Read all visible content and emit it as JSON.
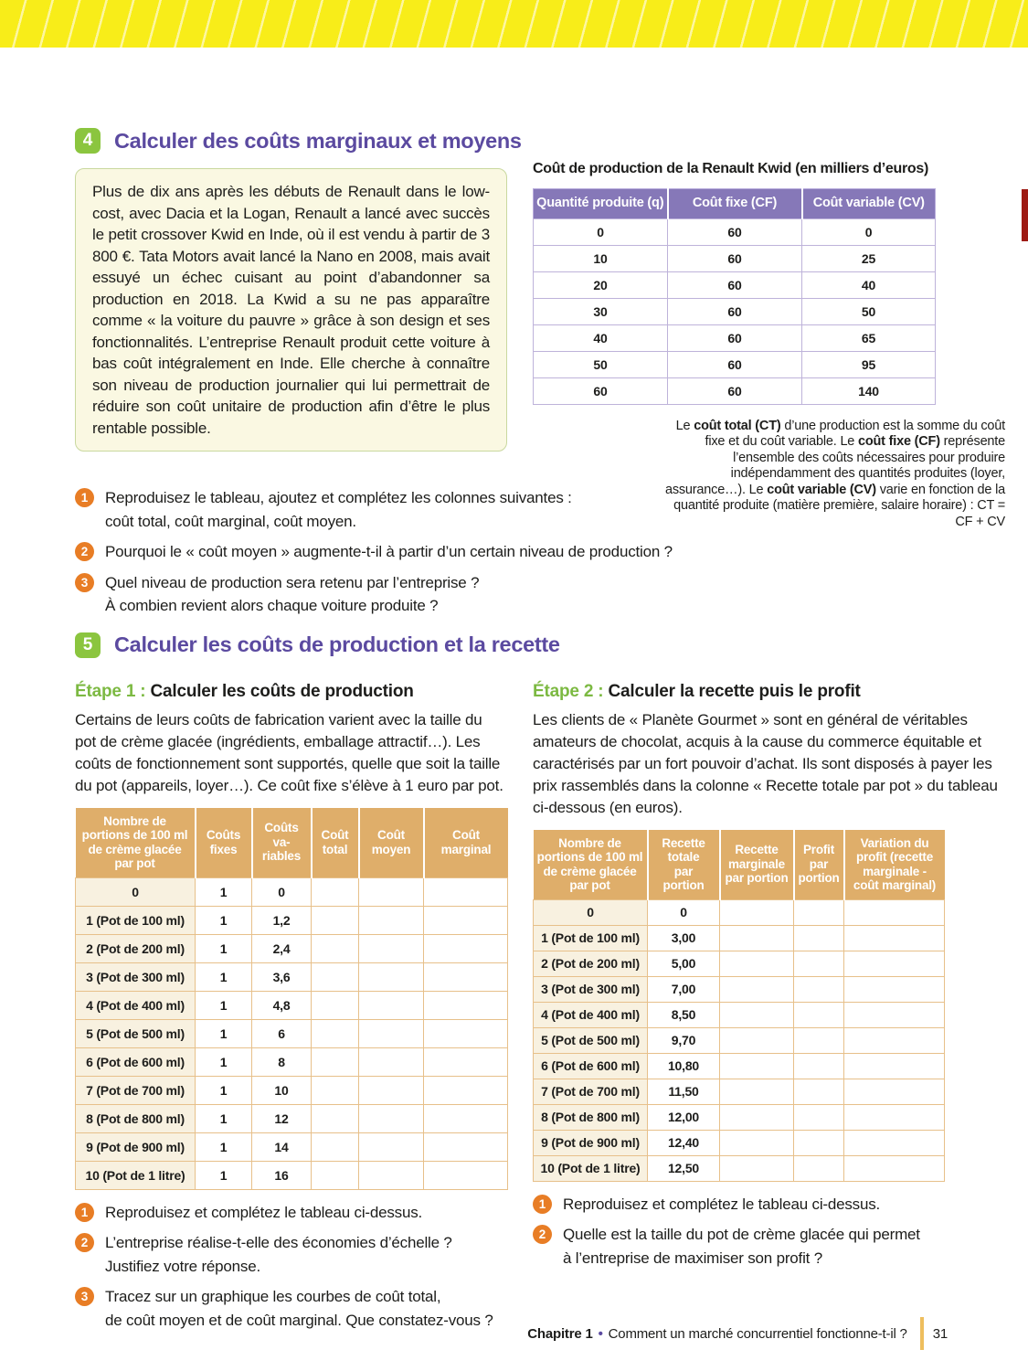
{
  "colors": {
    "band_yellow": "#f8ed19",
    "title_purple": "#5b4aa0",
    "section_badge_green": "#8bc53f",
    "kwid_header_purple": "#8678b8",
    "question_badge_orange": "#e87d25",
    "tan_header": "#dfae6a",
    "edge_tab_red": "#9e1b14",
    "footer_bar_gold": "#eebe5e"
  },
  "section4": {
    "number": "4",
    "title": "Calculer des coûts marginaux et moyens",
    "intro": "Plus de dix ans après les débuts de Renault dans le low-cost, avec Dacia et la Logan, Renault a lancé avec succès le petit crossover Kwid en Inde, où il est vendu à partir de 3 800 €. Tata Motors avait lancé la Nano en 2008, mais avait essuyé un échec cuisant au point d’abandonner sa production en 2018. La Kwid a su ne pas apparaître comme « la voiture du pauvre » grâce à son design et ses fonctionnalités. L’entreprise Renault produit cette voiture à bas coût intégralement en Inde. Elle cherche à connaître son niveau de production journalier qui lui permettrait de réduire son coût unitaire de production afin d’être le plus rentable possible.",
    "table": {
      "title": "Coût de production de la Renault Kwid (en milliers d’euros)",
      "headers": [
        "Quantité produite (q)",
        "Coût fixe (CF)",
        "Coût variable (CV)"
      ],
      "rows": [
        [
          "0",
          "60",
          "0"
        ],
        [
          "10",
          "60",
          "25"
        ],
        [
          "20",
          "60",
          "40"
        ],
        [
          "30",
          "60",
          "50"
        ],
        [
          "40",
          "60",
          "65"
        ],
        [
          "50",
          "60",
          "95"
        ],
        [
          "60",
          "60",
          "140"
        ]
      ]
    },
    "note": {
      "s1": "Le ",
      "b1": "coût total (CT)",
      "s2": " d’une production est la somme du coût fixe et du coût variable. Le ",
      "b2": "coût fixe (CF)",
      "s3": " représente l’ensemble des coûts nécessaires pour produire indépendamment des quantités produites (loyer, assurance…). Le ",
      "b3": "coût variable (CV)",
      "s4": " varie en fonction de la quantité produite (matière première, salaire horaire) : CT = CF + CV"
    },
    "questions": [
      {
        "num": "1",
        "lines": [
          "Reproduisez le tableau, ajoutez et complétez les colonnes suivantes :",
          "coût total, coût marginal, coût moyen."
        ]
      },
      {
        "num": "2",
        "lines": [
          "Pourquoi le « coût moyen » augmente-t-il à partir d’un certain niveau de production ?"
        ]
      },
      {
        "num": "3",
        "lines": [
          "Quel niveau de production sera retenu par l’entreprise ?",
          "À combien revient alors chaque voiture produite ?"
        ]
      }
    ]
  },
  "section5": {
    "number": "5",
    "title": "Calculer les coûts de production et la recette",
    "etape1": {
      "label": "Étape 1 :",
      "heading": " Calculer les coûts de production",
      "body": "Certains de leurs coûts de fabrication varient avec la taille du pot de crème glacée (ingrédients, emballage attractif…). Les coûts de fonctionnement sont supportés, quelle que soit la taille du pot (appareils, loyer…). Ce coût fixe s’élève à 1 euro par pot.",
      "table": {
        "headers": [
          "Nombre de\nportions de 100 ml\nde crème glacée\npar pot",
          "Coûts\nfixes",
          "Coûts\nva-\nriables",
          "Coût\ntotal",
          "Coût\nmoyen",
          "Coût\nmarginal"
        ],
        "rows": [
          [
            "0",
            "1",
            "0",
            "",
            "",
            ""
          ],
          [
            "1 (Pot de 100 ml)",
            "1",
            "1,2",
            "",
            "",
            ""
          ],
          [
            "2 (Pot de 200 ml)",
            "1",
            "2,4",
            "",
            "",
            ""
          ],
          [
            "3 (Pot de 300 ml)",
            "1",
            "3,6",
            "",
            "",
            ""
          ],
          [
            "4 (Pot de 400 ml)",
            "1",
            "4,8",
            "",
            "",
            ""
          ],
          [
            "5 (Pot de 500 ml)",
            "1",
            "6",
            "",
            "",
            ""
          ],
          [
            "6 (Pot de 600 ml)",
            "1",
            "8",
            "",
            "",
            ""
          ],
          [
            "7 (Pot de 700 ml)",
            "1",
            "10",
            "",
            "",
            ""
          ],
          [
            "8 (Pot de 800 ml)",
            "1",
            "12",
            "",
            "",
            ""
          ],
          [
            "9 (Pot de 900 ml)",
            "1",
            "14",
            "",
            "",
            ""
          ],
          [
            "10 (Pot de 1 litre)",
            "1",
            "16",
            "",
            "",
            ""
          ]
        ]
      },
      "questions": [
        {
          "num": "1",
          "lines": [
            "Reproduisez et complétez le tableau ci-dessus."
          ]
        },
        {
          "num": "2",
          "lines": [
            "L’entreprise réalise-t-elle des économies d’échelle ?",
            "Justifiez votre réponse."
          ]
        },
        {
          "num": "3",
          "lines": [
            "Tracez sur un graphique les courbes de coût total,",
            "de coût moyen et de coût marginal. Que constatez-vous ?"
          ]
        }
      ]
    },
    "etape2": {
      "label": "Étape 2 :",
      "heading": " Calculer la recette puis le profit",
      "body": "Les clients de « Planète Gourmet » sont en général de véritables amateurs de chocolat, acquis à la cause du commerce équitable et caractérisés par un fort pouvoir d’achat. Ils sont disposés à payer les prix rassemblés dans la colonne « Recette totale par pot » du tableau ci-dessous (en euros).",
      "table": {
        "headers": [
          "Nombre de\nportions de 100 ml\nde crème glacée\npar pot",
          "Recette\ntotale\npar\nportion",
          "Recette\nmarginale\npar portion",
          "Profit\npar\nportion",
          "Variation du\nprofit (recette\nmarginale -\ncoût marginal)"
        ],
        "rows": [
          [
            "0",
            "0",
            "",
            "",
            ""
          ],
          [
            "1 (Pot de 100 ml)",
            "3,00",
            "",
            "",
            ""
          ],
          [
            "2 (Pot de 200 ml)",
            "5,00",
            "",
            "",
            ""
          ],
          [
            "3 (Pot de 300 ml)",
            "7,00",
            "",
            "",
            ""
          ],
          [
            "4 (Pot de 400 ml)",
            "8,50",
            "",
            "",
            ""
          ],
          [
            "5 (Pot de 500 ml)",
            "9,70",
            "",
            "",
            ""
          ],
          [
            "6 (Pot de 600 ml)",
            "10,80",
            "",
            "",
            ""
          ],
          [
            "7 (Pot de 700 ml)",
            "11,50",
            "",
            "",
            ""
          ],
          [
            "8 (Pot de 800 ml)",
            "12,00",
            "",
            "",
            ""
          ],
          [
            "9 (Pot de 900 ml)",
            "12,40",
            "",
            "",
            ""
          ],
          [
            "10 (Pot de 1 litre)",
            "12,50",
            "",
            "",
            ""
          ]
        ]
      },
      "questions": [
        {
          "num": "1",
          "lines": [
            "Reproduisez et complétez le tableau ci-dessus."
          ]
        },
        {
          "num": "2",
          "lines": [
            "Quelle est la taille du pot de crème glacée qui permet",
            "à l’entreprise de maximiser son profit ?"
          ]
        }
      ]
    }
  },
  "footer": {
    "chapter": "Chapitre 1",
    "separator": "•",
    "title": "Comment un marché concurrentiel fonctionne-t-il ?",
    "page_number": "31"
  }
}
